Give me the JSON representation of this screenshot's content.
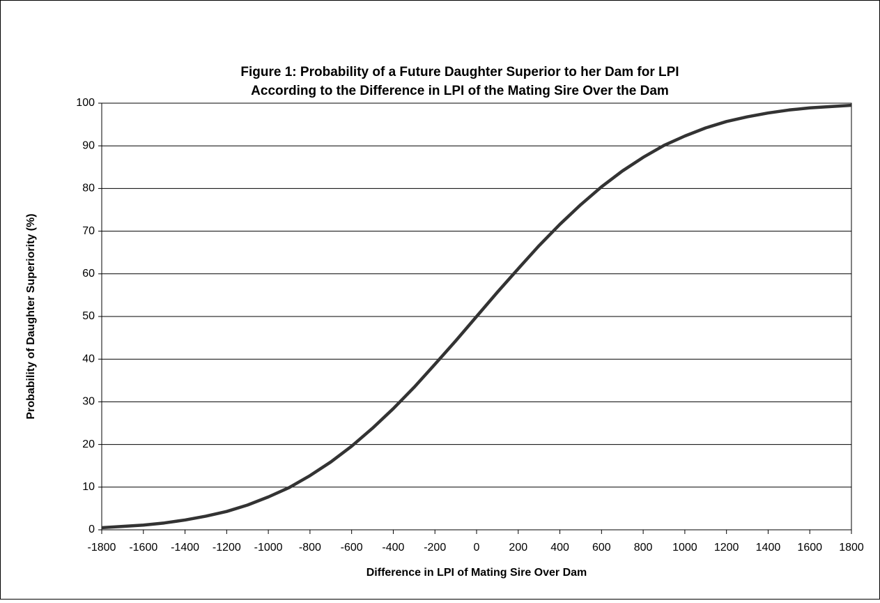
{
  "chart_data": {
    "type": "line",
    "title": [
      "Figure 1:  Probability of a Future Daughter Superior to her Dam for LPI",
      "According to the Difference in LPI of the Mating Sire Over the Dam"
    ],
    "x_label": "Difference in LPI of Mating Sire Over Dam",
    "y_label": "Probability of Daughter Superiority (%)",
    "x": [
      -1800,
      -1700,
      -1600,
      -1500,
      -1400,
      -1300,
      -1200,
      -1100,
      -1000,
      -900,
      -800,
      -700,
      -600,
      -500,
      -400,
      -300,
      -200,
      -100,
      0,
      100,
      200,
      300,
      400,
      500,
      600,
      700,
      800,
      900,
      1000,
      1100,
      1200,
      1300,
      1400,
      1500,
      1600,
      1700,
      1800
    ],
    "series": [
      {
        "name": "Probability",
        "color": "#333333",
        "values": [
          0.5,
          0.8,
          1.1,
          1.6,
          2.3,
          3.2,
          4.3,
          5.8,
          7.7,
          9.9,
          12.7,
          15.9,
          19.6,
          23.8,
          28.4,
          33.4,
          38.8,
          44.3,
          50,
          55.7,
          61.2,
          66.6,
          71.6,
          76.2,
          80.4,
          84.1,
          87.3,
          90.1,
          92.3,
          94.2,
          95.7,
          96.8,
          97.7,
          98.4,
          98.9,
          99.2,
          99.5
        ]
      }
    ],
    "xlim": [
      -1800,
      1800
    ],
    "xticks": [
      -1800,
      -1600,
      -1400,
      -1200,
      -1000,
      -800,
      -600,
      -400,
      -200,
      0,
      200,
      400,
      600,
      800,
      1000,
      1200,
      1400,
      1600,
      1800
    ],
    "ylim": [
      0,
      100
    ],
    "yticks": [
      0,
      10,
      20,
      30,
      40,
      50,
      60,
      70,
      80,
      90,
      100
    ],
    "grid": true
  }
}
